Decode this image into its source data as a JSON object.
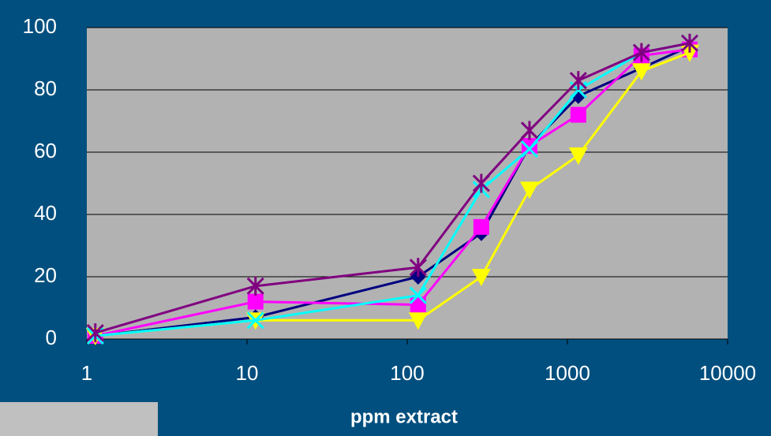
{
  "chart_data": {
    "type": "line",
    "x_label": "ppm extract",
    "x": [
      1.13,
      11.3,
      117,
      290,
      580,
      1170,
      2900,
      5800
    ],
    "xscale": "log",
    "xlim": [
      1,
      10000
    ],
    "xticks": [
      1,
      10,
      100,
      1000,
      10000
    ],
    "ylim": [
      0,
      100
    ],
    "yticks": [
      0,
      20,
      40,
      60,
      80,
      100
    ],
    "grid": true,
    "series": [
      {
        "color": "#000080",
        "marker": "diamond",
        "values": [
          1,
          7,
          20,
          34,
          62,
          78,
          87,
          94
        ]
      },
      {
        "color": "#ff00ff",
        "marker": "square",
        "values": [
          1,
          12,
          11,
          36,
          62,
          72,
          91,
          93
        ]
      },
      {
        "color": "#ffff00",
        "marker": "triangle",
        "values": [
          1,
          6,
          6,
          20,
          48,
          59,
          86,
          92
        ]
      },
      {
        "color": "#00ffff",
        "marker": "x",
        "values": [
          1,
          6,
          14,
          48,
          61,
          80,
          92,
          95
        ]
      },
      {
        "color": "#800080",
        "marker": "asterisk",
        "values": [
          2,
          17,
          23,
          50,
          67,
          83,
          92,
          95
        ]
      }
    ]
  }
}
